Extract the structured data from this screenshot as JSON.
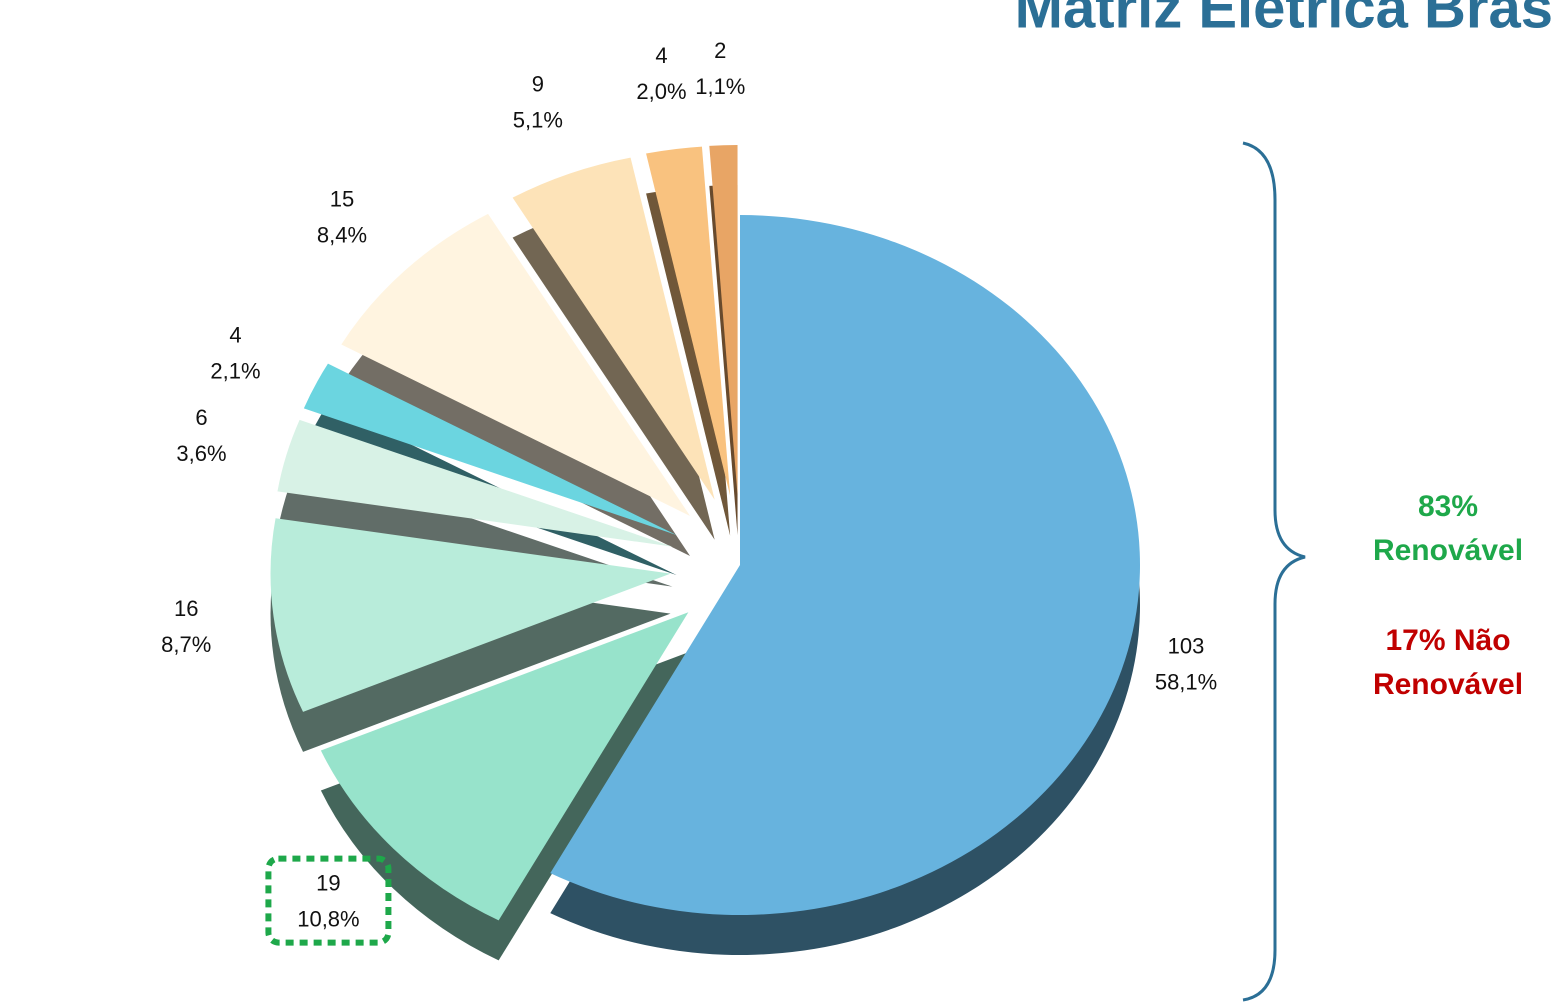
{
  "chart_data": {
    "type": "pie",
    "title": "Matriz Elétrica Bras",
    "values": [
      103,
      19,
      16,
      6,
      4,
      15,
      9,
      4,
      2
    ],
    "percentages": [
      58.1,
      10.8,
      8.7,
      3.6,
      2.1,
      8.4,
      5.1,
      2.0,
      1.1
    ],
    "percentage_labels": [
      "58,1%",
      "10,8%",
      "8,7%",
      "3,6%",
      "2,1%",
      "8,4%",
      "5,1%",
      "2,0%",
      "1,1%"
    ],
    "colors": [
      "#67b3de",
      "#97e3cb",
      "#b8ecda",
      "#d8f2e6",
      "#6bd5e0",
      "#fff4e0",
      "#fde3b8",
      "#f9c27f",
      "#e8a565"
    ],
    "annotations": [
      {
        "text": "83%",
        "color": "#1ea84a"
      },
      {
        "text": "Renovável",
        "color": "#1ea84a"
      },
      {
        "text": "17% Não",
        "color": "#c00000"
      },
      {
        "text": "Renovável",
        "color": "#c00000"
      }
    ]
  }
}
